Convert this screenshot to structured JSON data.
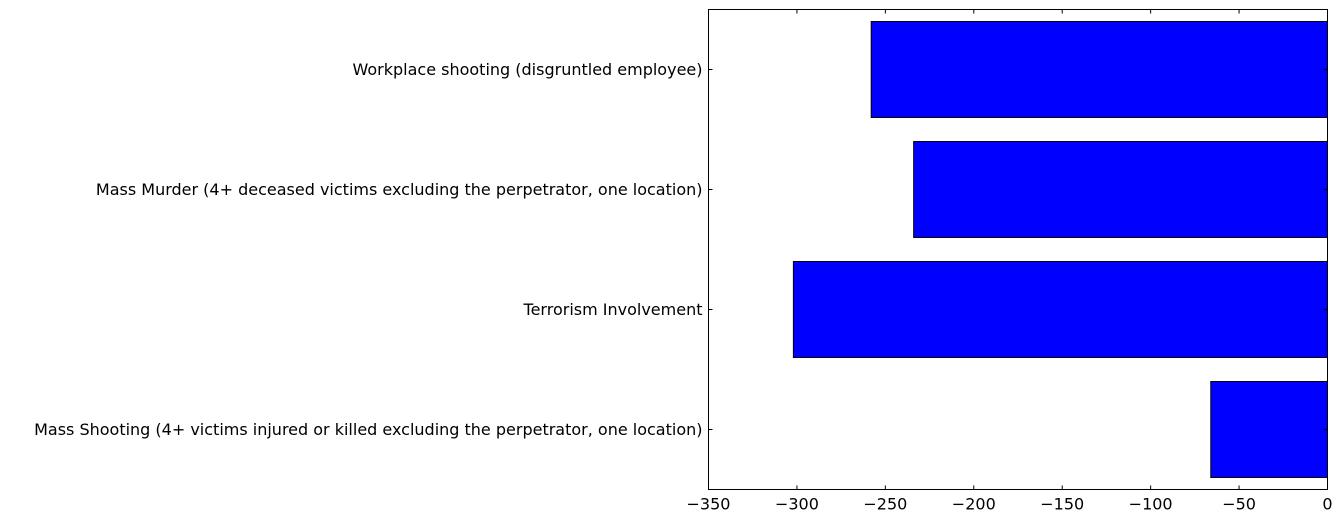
{
  "chart_data": {
    "type": "bar",
    "orientation": "horizontal",
    "categories": [
      "Mass Shooting (4+ victims injured or killed excluding the perpetrator, one location)",
      "Terrorism Involvement",
      "Mass Murder (4+ deceased victims excluding the perpetrator, one location)",
      "Workplace shooting (disgruntled employee)"
    ],
    "values": [
      -66,
      -302,
      -234,
      -258
    ],
    "xlim": [
      -350,
      0
    ],
    "xticks": [
      -350,
      -300,
      -250,
      -200,
      -150,
      -100,
      -50,
      0
    ],
    "xtick_labels": [
      "−350",
      "−300",
      "−250",
      "−200",
      "−150",
      "−100",
      "−50",
      "0"
    ],
    "title": "",
    "xlabel": "",
    "ylabel": "",
    "grid": false,
    "bar_color": "#0000ff",
    "edge_color": "#000000"
  }
}
